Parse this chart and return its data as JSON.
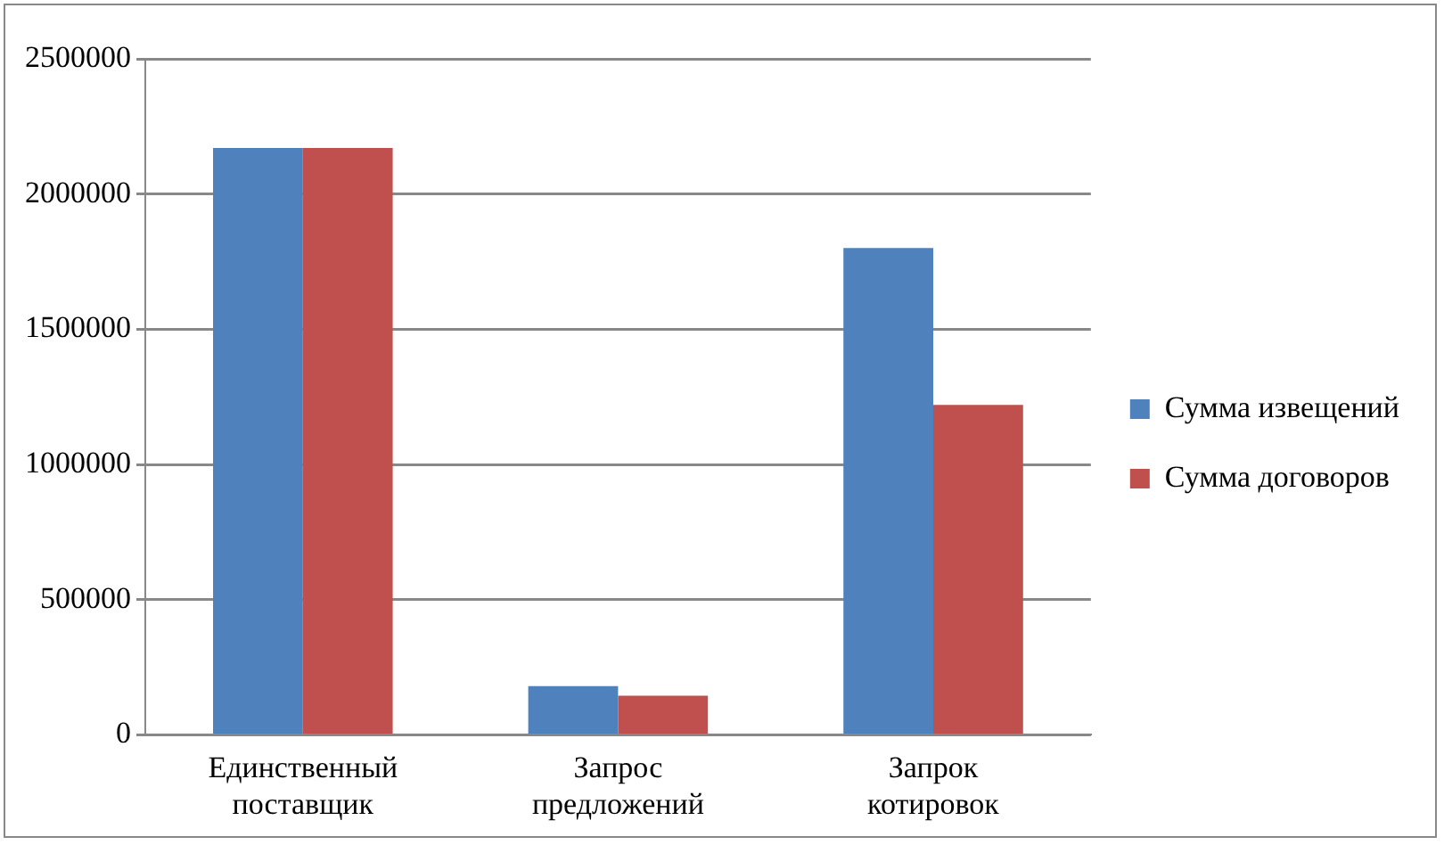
{
  "chart_data": {
    "type": "bar",
    "categories": [
      "Единственный поставщик",
      "Запрос предложений",
      "Запрок котировок"
    ],
    "series": [
      {
        "name": "Сумма извещений",
        "color": "#4f81bd",
        "values": [
          2170000,
          180000,
          1800000
        ]
      },
      {
        "name": "Сумма договоров",
        "color": "#c0504d",
        "values": [
          2170000,
          145000,
          1220000
        ]
      }
    ],
    "ylim": [
      0,
      2500000
    ],
    "yticks": [
      0,
      500000,
      1000000,
      1500000,
      2000000,
      2500000
    ],
    "grid": "y",
    "legend": "right"
  }
}
